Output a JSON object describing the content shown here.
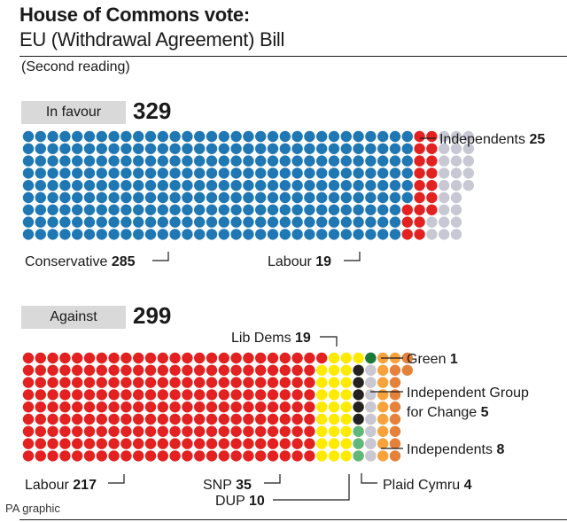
{
  "header": {
    "title": "House of Commons vote:",
    "subtitle": "EU (Withdrawal Agreement) Bill",
    "note": "(Second reading)"
  },
  "footer": {
    "credit": "PA graphic"
  },
  "chart_data": [
    {
      "type": "waffle",
      "group": "In favour",
      "total": "329",
      "series": [
        {
          "name": "Conservative",
          "value": 285,
          "color": "#1f78b4"
        },
        {
          "name": "Labour",
          "value": 19,
          "color": "#e32121"
        },
        {
          "name": "Independents",
          "value": 25,
          "color": "#c8c8d4"
        }
      ]
    },
    {
      "type": "waffle",
      "group": "Against",
      "total": "299",
      "series": [
        {
          "name": "Labour",
          "value": 217,
          "color": "#e32121"
        },
        {
          "name": "SNP",
          "value": 35,
          "color": "#ffea00"
        },
        {
          "name": "Lib Dems",
          "value": 19,
          "color": "#f7a23b"
        },
        {
          "name": "DUP",
          "value": 10,
          "color": "#e6813a"
        },
        {
          "name": "Independent Group for Change",
          "value": 5,
          "color": "#222222"
        },
        {
          "name": "Plaid Cymru",
          "value": 4,
          "color": "#5fb77b"
        },
        {
          "name": "Green",
          "value": 1,
          "color": "#1b7a3a"
        },
        {
          "name": "Independents",
          "value": 8,
          "color": "#c8c8d4"
        }
      ]
    }
  ]
}
